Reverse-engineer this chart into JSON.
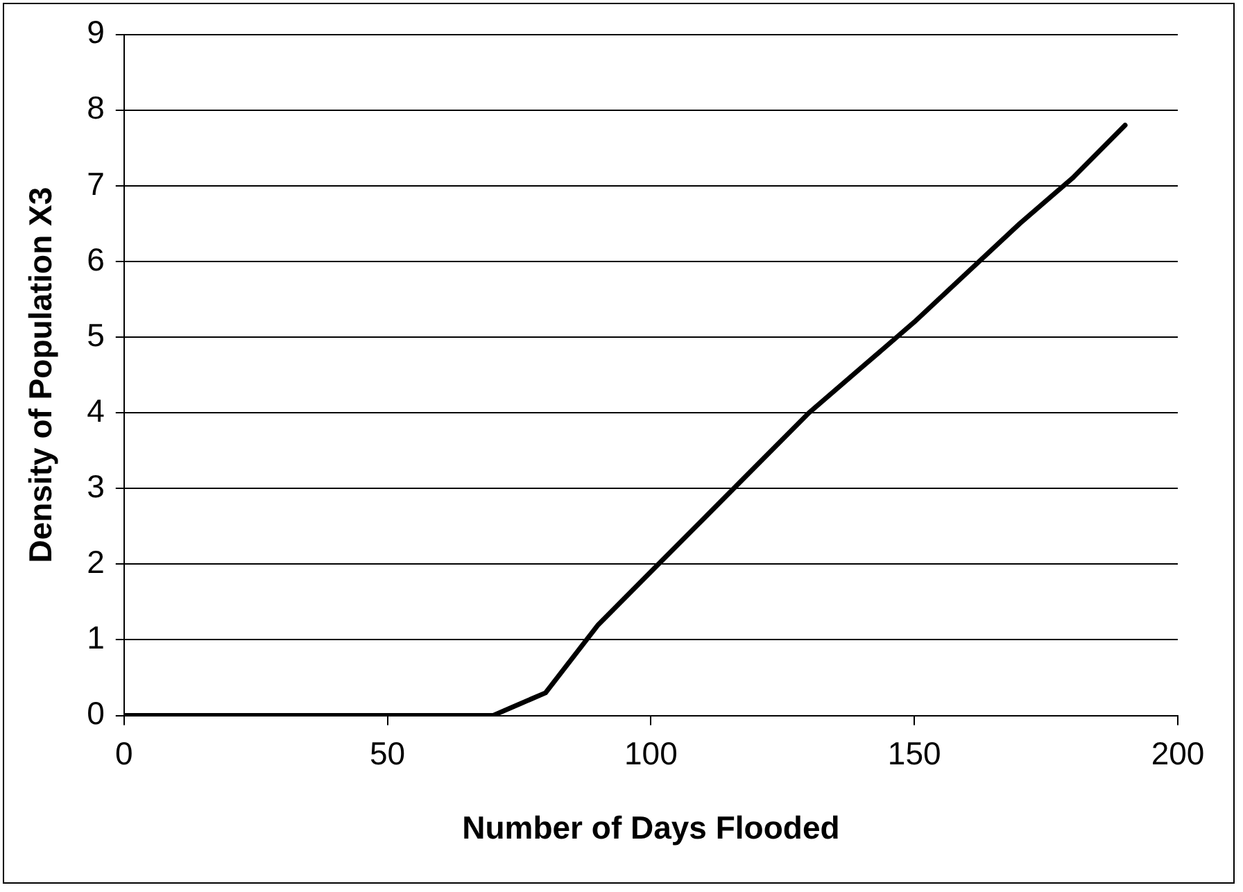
{
  "chart_data": {
    "type": "line",
    "xlabel": "Number of Days Flooded",
    "ylabel": "Density of Population X3",
    "x": [
      0,
      10,
      20,
      30,
      40,
      50,
      60,
      70,
      80,
      90,
      100,
      110,
      120,
      130,
      140,
      150,
      160,
      170,
      180,
      190
    ],
    "series": [
      {
        "color": "#000000",
        "values": [
          0,
          0,
          0,
          0,
          0,
          0,
          0,
          0,
          0.3,
          1.2,
          1.9,
          2.6,
          3.3,
          4.0,
          4.6,
          5.2,
          5.85,
          6.5,
          7.1,
          7.8
        ]
      }
    ],
    "xlim": [
      0,
      200
    ],
    "xticks": [
      0,
      50,
      100,
      150,
      200
    ],
    "ylim": [
      0,
      9
    ],
    "yticks": [
      0,
      1,
      2,
      3,
      4,
      5,
      6,
      7,
      8,
      9
    ],
    "grid": "y",
    "legend": false,
    "marker": "none",
    "line_style": "solid"
  }
}
